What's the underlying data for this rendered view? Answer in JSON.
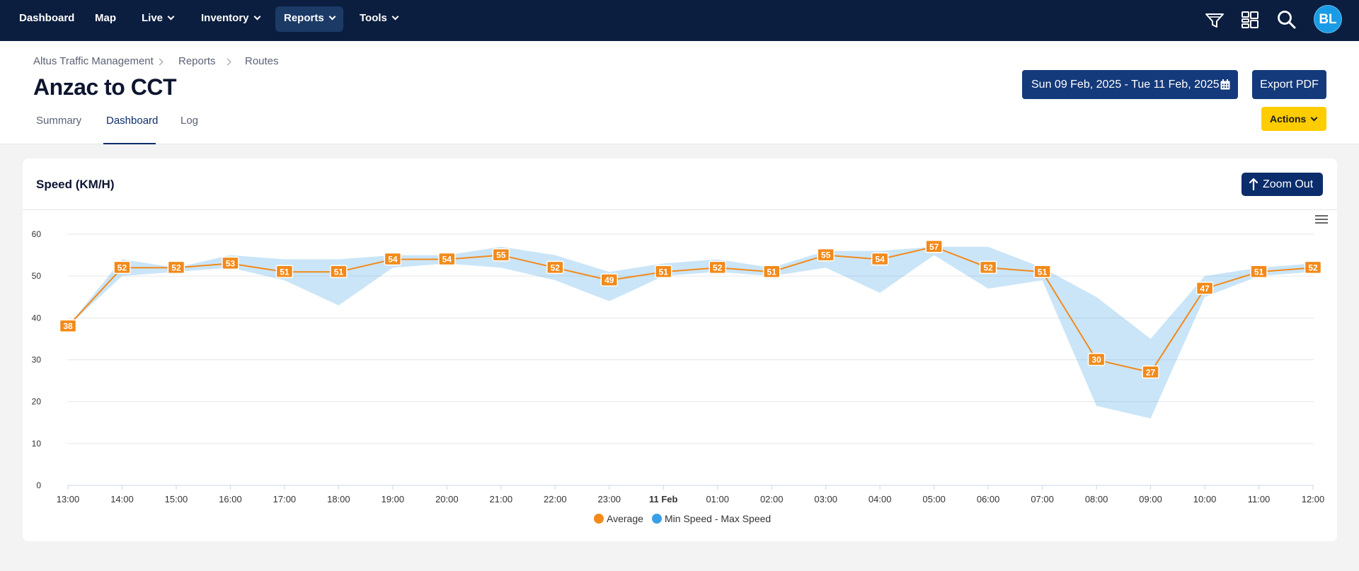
{
  "nav": {
    "items": [
      {
        "label": "Dashboard",
        "dropdown": false
      },
      {
        "label": "Map",
        "dropdown": false
      },
      {
        "label": "Live",
        "dropdown": true
      },
      {
        "label": "Inventory",
        "dropdown": true
      },
      {
        "label": "Reports",
        "dropdown": true,
        "active": true
      },
      {
        "label": "Tools",
        "dropdown": true
      }
    ],
    "icons": [
      "filter-icon",
      "widgets-icon",
      "search-icon"
    ],
    "avatar": "BL"
  },
  "breadcrumb": [
    "Altus Traffic Management",
    "Reports",
    "Routes"
  ],
  "page_title": "Anzac to CCT",
  "tabs": [
    {
      "label": "Summary",
      "active": false
    },
    {
      "label": "Dashboard",
      "active": true
    },
    {
      "label": "Log",
      "active": false
    }
  ],
  "date_range": "Sun 09 Feb, 2025 - Tue 11 Feb, 2025",
  "export_label": "Export PDF",
  "actions_label": "Actions",
  "card": {
    "title": "Speed (KM/H)",
    "zoom_label": "Zoom Out"
  },
  "colors": {
    "nav_bg": "#0b1e3f",
    "primary": "#143a7b",
    "accent": "#ffcc00",
    "average_line": "#f28a1a",
    "range_fill": "#c9e4f6"
  },
  "chart_data": {
    "type": "line",
    "title": "Speed (KM/H)",
    "categories": [
      "13:00",
      "14:00",
      "15:00",
      "16:00",
      "17:00",
      "18:00",
      "19:00",
      "20:00",
      "21:00",
      "22:00",
      "23:00",
      "11 Feb",
      "01:00",
      "02:00",
      "03:00",
      "04:00",
      "05:00",
      "06:00",
      "07:00",
      "08:00",
      "09:00",
      "10:00",
      "11:00",
      "12:00"
    ],
    "bold_categories": [
      "11 Feb"
    ],
    "ylim": [
      0,
      60
    ],
    "yticks": [
      0,
      10,
      20,
      30,
      40,
      50,
      60
    ],
    "grid": true,
    "legend_position": "bottom",
    "series": [
      {
        "name": "Average",
        "type": "line",
        "color": "#f28a1a",
        "values": [
          38,
          52,
          52,
          53,
          51,
          51,
          54,
          54,
          55,
          52,
          49,
          51,
          52,
          51,
          55,
          54,
          57,
          52,
          51,
          30,
          27,
          47,
          51,
          52
        ]
      },
      {
        "name": "Min Speed - Max Speed",
        "type": "arearange",
        "color": "#3aa0e6",
        "min": [
          38,
          50,
          51,
          52,
          49,
          43,
          52,
          53,
          52,
          49,
          44,
          50,
          51,
          50,
          52,
          46,
          55,
          47,
          49,
          19,
          16,
          45,
          50,
          51
        ],
        "max": [
          38,
          54,
          52,
          55,
          54,
          54,
          55,
          55,
          57,
          55,
          51,
          53,
          54,
          52,
          56,
          56,
          57,
          57,
          52,
          45,
          35,
          50,
          52,
          53
        ]
      }
    ]
  }
}
